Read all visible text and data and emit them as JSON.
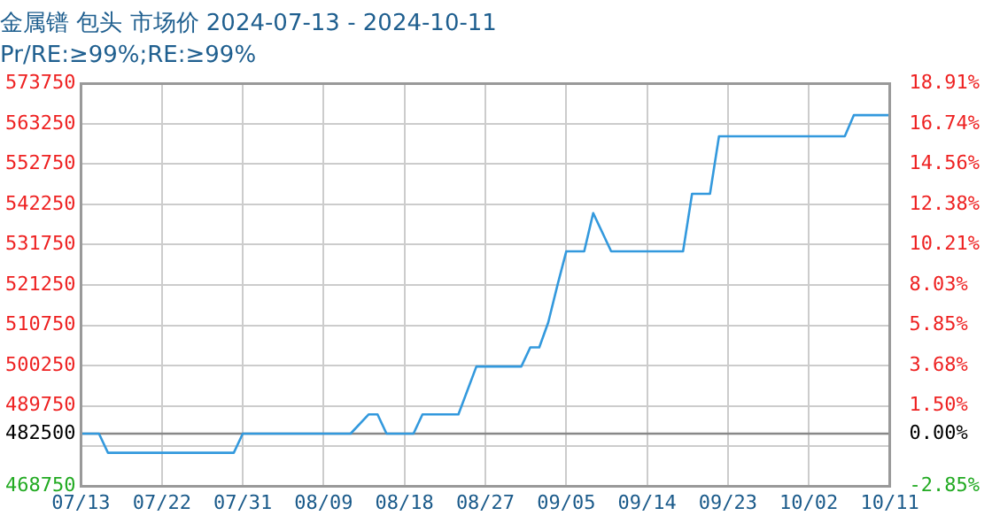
{
  "chart_data": {
    "type": "line",
    "title": "金属镨 包头 市场价 2024-07-13 - 2024-10-11",
    "subtitle": "Pr/RE:≥99%;RE:≥99%",
    "x": [
      "2024-07-13",
      "2024-07-15",
      "2024-07-16",
      "2024-07-30",
      "2024-07-31",
      "2024-08-12",
      "2024-08-14",
      "2024-08-15",
      "2024-08-16",
      "2024-08-19",
      "2024-08-20",
      "2024-08-24",
      "2024-08-26",
      "2024-08-31",
      "2024-09-01",
      "2024-09-02",
      "2024-09-03",
      "2024-09-04",
      "2024-09-05",
      "2024-09-07",
      "2024-09-08",
      "2024-09-10",
      "2024-09-18",
      "2024-09-19",
      "2024-09-21",
      "2024-09-22",
      "2024-10-06",
      "2024-10-07",
      "2024-10-11"
    ],
    "series": [
      {
        "color": "#3399dd",
        "values": [
          482500,
          482500,
          477500,
          477500,
          482500,
          482500,
          487500,
          487500,
          482500,
          482500,
          487500,
          487500,
          500000,
          500000,
          505000,
          505000,
          511500,
          521000,
          530000,
          530000,
          540000,
          530000,
          530000,
          545000,
          545000,
          560000,
          560000,
          565500,
          565500
        ]
      }
    ],
    "xlim": [
      "2024-07-13",
      "2024-10-11"
    ],
    "xticks": [
      {
        "value": "2024-07-13",
        "label": "07/13"
      },
      {
        "value": "2024-07-22",
        "label": "07/22"
      },
      {
        "value": "2024-07-31",
        "label": "07/31"
      },
      {
        "value": "2024-08-09",
        "label": "08/09"
      },
      {
        "value": "2024-08-18",
        "label": "08/18"
      },
      {
        "value": "2024-08-27",
        "label": "08/27"
      },
      {
        "value": "2024-09-05",
        "label": "09/05"
      },
      {
        "value": "2024-09-14",
        "label": "09/14"
      },
      {
        "value": "2024-09-23",
        "label": "09/23"
      },
      {
        "value": "2024-10-02",
        "label": "10/02"
      },
      {
        "value": "2024-10-11",
        "label": "10/11"
      }
    ],
    "ylim": [
      468750,
      573750
    ],
    "yticks": [
      468750,
      {
        "value": 479250,
        "label": null
      },
      482500,
      489750,
      500250,
      510750,
      521250,
      531750,
      542250,
      552750,
      563250,
      573750
    ],
    "y2lim": [
      -2.85,
      18.91
    ],
    "y2ticks": [
      {
        "value": -2.85,
        "label": "-2.85%"
      },
      {
        "value": 0,
        "label": "0.00%"
      },
      {
        "value": 1.5,
        "label": "1.50%"
      },
      {
        "value": 3.68,
        "label": "3.68%"
      },
      {
        "value": 5.85,
        "label": "5.85%"
      },
      {
        "value": 8.03,
        "label": "8.03%"
      },
      {
        "value": 10.21,
        "label": "10.21%"
      },
      {
        "value": 12.38,
        "label": "12.38%"
      },
      {
        "value": 14.56,
        "label": "14.56%"
      },
      {
        "value": 16.74,
        "label": "16.74%"
      },
      {
        "value": 18.91,
        "label": "18.91%"
      }
    ],
    "ref_lines": [
      {
        "axis": "y",
        "value": 482500,
        "color": "#888888"
      }
    ],
    "grid": true,
    "legend": false,
    "marker": "none",
    "line_style": "solid"
  }
}
